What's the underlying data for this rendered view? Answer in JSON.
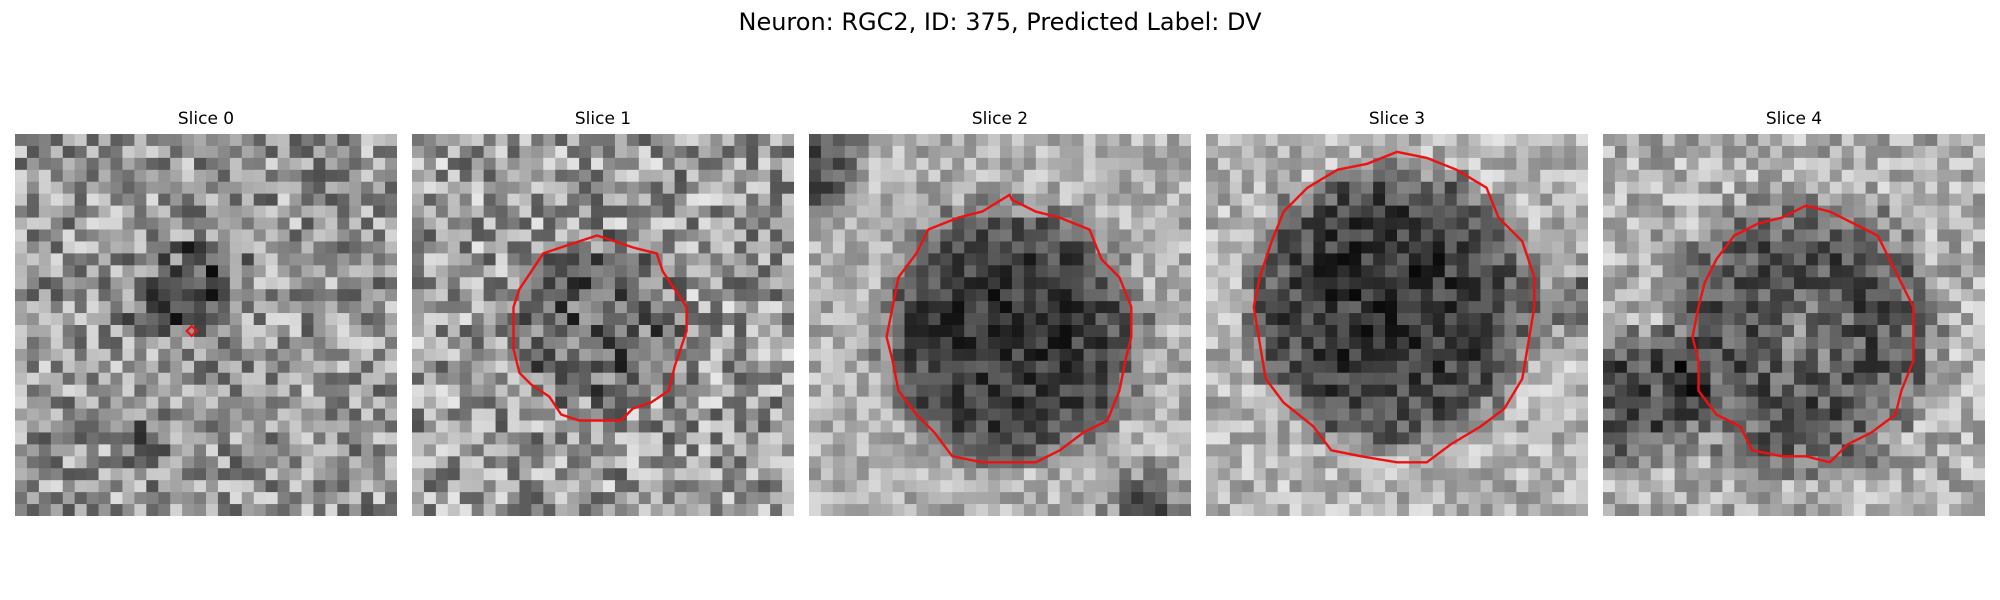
{
  "figure": {
    "title": "Neuron: RGC2, ID: 375, Predicted Label: DV"
  },
  "panels": [
    {
      "title": "Slice 0",
      "outline": "marker",
      "dark_region": "small"
    },
    {
      "title": "Slice 1",
      "outline": "contour",
      "dark_region": "medium"
    },
    {
      "title": "Slice 2",
      "outline": "contour",
      "dark_region": "large"
    },
    {
      "title": "Slice 3",
      "outline": "contour",
      "dark_region": "large"
    },
    {
      "title": "Slice 4",
      "outline": "contour",
      "dark_region": "ring"
    }
  ],
  "colors": {
    "contour": "#ee1111",
    "background": "#ffffff"
  }
}
